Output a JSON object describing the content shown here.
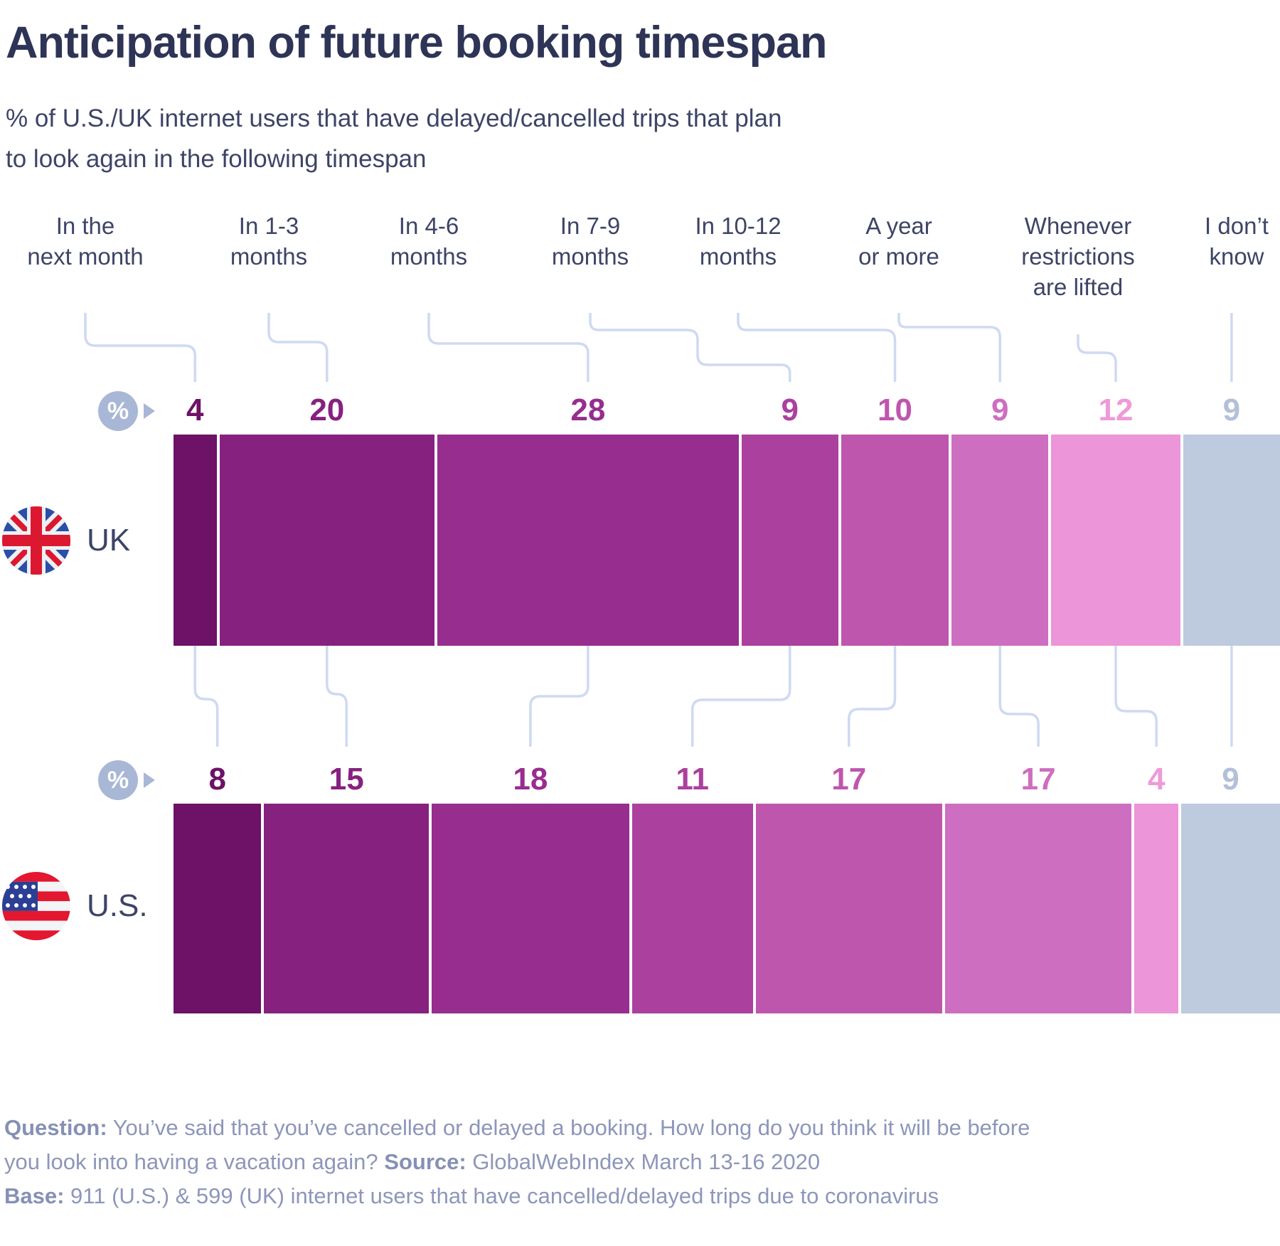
{
  "title": "Anticipation of future booking timespan",
  "subtitle_line1": "% of U.S./UK internet users that have delayed/cancelled trips that plan",
  "subtitle_line2": "to look again in the following timespan",
  "percent_symbol": "%",
  "categories": [
    "In the next month",
    "In 1-3 months",
    "In 4-6 months",
    "In 7-9 months",
    "In 10-12 months",
    "A year or more",
    "Whenever restrictions are lifted",
    "I don't know"
  ],
  "category_lines": [
    [
      "In the",
      "next month"
    ],
    [
      "In 1-3",
      "months"
    ],
    [
      "In 4-6",
      "months"
    ],
    [
      "In 7-9",
      "months"
    ],
    [
      "In 10-12",
      "months"
    ],
    [
      "A year",
      "or more"
    ],
    [
      "Whenever",
      "restrictions",
      "are lifted"
    ],
    [
      "I don’t",
      "know"
    ]
  ],
  "rows": [
    {
      "id": "uk",
      "label": "UK",
      "values": [
        4,
        20,
        28,
        9,
        10,
        9,
        12,
        9
      ]
    },
    {
      "id": "us",
      "label": "U.S.",
      "values": [
        8,
        15,
        18,
        11,
        17,
        17,
        4,
        9
      ]
    }
  ],
  "colors": {
    "segment_colors": [
      "#6D1266",
      "#872180",
      "#972D8E",
      "#AB409E",
      "#BF56AE",
      "#CE6EC0",
      "#EC95D8",
      "#BECADD"
    ],
    "number_colors": [
      "#6D1266",
      "#872180",
      "#972D8E",
      "#AB409E",
      "#BF56AE",
      "#CE6EC0",
      "#EE9AD9",
      "#B3C0D9"
    ],
    "connector": "#CFD9F2",
    "badge": "#A9B7D6",
    "title_navy": "#2E3456",
    "text_navy": "#3D4466",
    "footer_gray": "#8D96BA"
  },
  "footer": {
    "q_label": "Question:",
    "q_text1": " You’ve said that you’ve cancelled or delayed a booking. How long do you think it will be before",
    "q_text2": "you look into having a vacation again? ",
    "source_label": "Source:",
    "source_text": " GlobalWebIndex March 13-16 2020",
    "base_label": "Base:",
    "base_text": " 911 (U.S.) & 599 (UK) internet users that have cancelled/delayed trips due to coronavirus"
  },
  "chart_data": {
    "type": "bar",
    "variant": "horizontal-stacked-percentage",
    "title": "Anticipation of future booking timespan",
    "subtitle": "% of U.S./UK internet users that have delayed/cancelled trips that plan to look again in the following timespan",
    "unit": "%",
    "categories": [
      "In the next month",
      "In 1-3 months",
      "In 4-6 months",
      "In 7-9 months",
      "In 10-12 months",
      "A year or more",
      "Whenever restrictions are lifted",
      "I don't know"
    ],
    "series": [
      {
        "name": "UK",
        "values": [
          4,
          20,
          28,
          9,
          10,
          9,
          12,
          9
        ]
      },
      {
        "name": "U.S.",
        "values": [
          8,
          15,
          18,
          11,
          17,
          17,
          4,
          9
        ]
      }
    ],
    "legend_position": "row-flags-left",
    "grid": false
  }
}
